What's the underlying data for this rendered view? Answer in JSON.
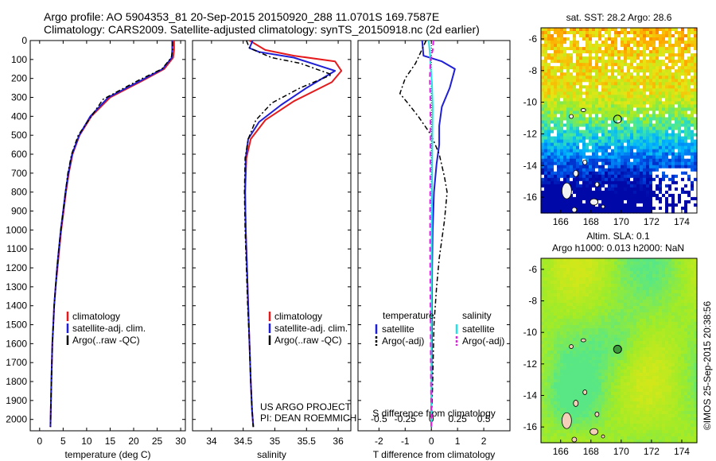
{
  "header": {
    "line1": "Argo profile: AO 5904353_81 20-Sep-2015 20150920_288 11.0701S 169.7587E",
    "line2": "Climatology: CARS2009. Satellite-adjusted climatology: synTS_20150918.nc (2d earlier)"
  },
  "footer_text": {
    "project": "US ARGO PROJECT",
    "pi": "PI: DEAN ROEMMICH",
    "credit": "©IMOS 25-Sep-2015 20:38:56"
  },
  "colors": {
    "climatology": "#e41a1c",
    "satellite": "#1f1fd6",
    "argo": "#000000",
    "salinity_satellite": "#26e0e8",
    "salinity_argo": "#e61ee6"
  },
  "chart_data": [
    {
      "type": "line",
      "xlabel": "temperature (deg C)",
      "xlim": [
        -2,
        31
      ],
      "xticks": [
        0,
        5,
        10,
        15,
        20,
        25,
        30
      ],
      "ylim": [
        0,
        2060
      ],
      "yticks": [
        0,
        100,
        200,
        300,
        400,
        500,
        600,
        700,
        800,
        900,
        1000,
        1100,
        1200,
        1300,
        1400,
        1500,
        1600,
        1700,
        1800,
        1900,
        2000
      ],
      "y_reversed": true,
      "legend": [
        "climatology",
        "satellite-adj. clim.",
        "Argo(..raw -QC)"
      ],
      "series": [
        {
          "name": "climatology",
          "x": [
            28.6,
            28.6,
            28.4,
            26.5,
            22,
            15,
            11,
            8.5,
            7,
            6.2,
            5.6,
            5.1,
            4.6,
            4.2,
            3.8,
            3.4,
            3.1,
            2.9,
            2.7,
            2.5,
            2.3
          ],
          "y": [
            0,
            50,
            90,
            150,
            210,
            300,
            400,
            500,
            600,
            700,
            800,
            900,
            1000,
            1100,
            1200,
            1300,
            1400,
            1500,
            1600,
            1800,
            2040
          ]
        },
        {
          "name": "satellite-adj. clim.",
          "x": [
            28.2,
            28.2,
            28.1,
            26.2,
            21.6,
            14.6,
            10.8,
            8.4,
            6.9,
            6.1,
            5.5,
            5.0,
            4.5,
            4.1,
            3.7,
            3.4,
            3.1,
            2.9,
            2.7,
            2.5,
            2.3
          ],
          "y": [
            0,
            50,
            90,
            150,
            210,
            300,
            400,
            500,
            600,
            700,
            800,
            900,
            1000,
            1100,
            1200,
            1300,
            1400,
            1500,
            1600,
            1800,
            2040
          ]
        },
        {
          "name": "Argo(..raw -QC)",
          "x": [
            28.3,
            28.3,
            28.0,
            26.0,
            21.0,
            13.5,
            11.0,
            8.2,
            6.8,
            6.0,
            5.5,
            5.0,
            4.5,
            4.1,
            3.7,
            3.4,
            3.1,
            2.9,
            2.7,
            2.5,
            2.3
          ],
          "y": [
            5,
            50,
            90,
            150,
            210,
            310,
            400,
            500,
            600,
            700,
            800,
            900,
            1000,
            1100,
            1200,
            1300,
            1400,
            1500,
            1600,
            1800,
            2040
          ]
        }
      ]
    },
    {
      "type": "line",
      "xlabel": "salinity",
      "xlim": [
        33.7,
        36.2
      ],
      "xticks": [
        34,
        34.5,
        35,
        35.5,
        36
      ],
      "ylim": [
        0,
        2060
      ],
      "y_reversed": true,
      "legend": [
        "climatology",
        "satellite-adj. clim.",
        "Argo(..raw -QC)"
      ],
      "series": [
        {
          "name": "climatology",
          "x": [
            34.6,
            34.85,
            35.3,
            35.95,
            36.05,
            35.9,
            35.3,
            34.85,
            34.62,
            34.55,
            34.53,
            34.54,
            34.56,
            34.58,
            34.6,
            34.62,
            34.64,
            34.66
          ],
          "y": [
            0,
            50,
            80,
            110,
            160,
            220,
            320,
            420,
            520,
            620,
            800,
            1000,
            1200,
            1400,
            1600,
            1800,
            1950,
            2040
          ]
        },
        {
          "name": "satellite-adj. clim.",
          "x": [
            34.65,
            34.6,
            34.75,
            35.3,
            35.95,
            35.5,
            35.1,
            34.75,
            34.58,
            34.54,
            34.53,
            34.54,
            34.56,
            34.58,
            34.6,
            34.62,
            34.64,
            34.66
          ],
          "y": [
            0,
            40,
            60,
            90,
            160,
            250,
            340,
            430,
            520,
            620,
            800,
            1000,
            1200,
            1400,
            1600,
            1800,
            1950,
            2040
          ]
        },
        {
          "name": "Argo(..raw -QC)",
          "x": [
            34.55,
            34.6,
            34.95,
            35.4,
            35.9,
            35.4,
            34.95,
            34.7,
            34.58,
            34.53,
            34.52,
            34.53,
            34.55,
            34.57,
            34.6,
            34.62,
            34.64,
            34.66
          ],
          "y": [
            0,
            40,
            90,
            120,
            180,
            250,
            330,
            420,
            520,
            620,
            800,
            1000,
            1200,
            1400,
            1600,
            1800,
            1950,
            2040
          ]
        }
      ]
    },
    {
      "type": "line",
      "title": "",
      "xlabel": "T difference from climatology",
      "xlabel_top": "S difference from climatology",
      "xlim": [
        -2.8,
        3.0
      ],
      "xticks": [
        -2,
        -1,
        0,
        1,
        2
      ],
      "xticks_s": [
        -0.5,
        -0.25,
        0,
        0.25,
        0.5
      ],
      "ylim": [
        0,
        2060
      ],
      "y_reversed": true,
      "legend": {
        "temperature_head": "temperature",
        "salinity_head": "salinity",
        "entries": [
          "satellite",
          "Argo(-adj)",
          "satellite",
          "Argo(-adj)"
        ]
      },
      "series": [
        {
          "name": "temperature satellite",
          "x": [
            -0.35,
            -0.3,
            0.4,
            0.9,
            0.7,
            0.4,
            0.3,
            0.3,
            0.2,
            0.1,
            0.05,
            0.03,
            0.02,
            0.02,
            0.01,
            0.0,
            0.0
          ],
          "y": [
            0,
            80,
            110,
            150,
            250,
            350,
            450,
            550,
            650,
            800,
            1000,
            1200,
            1400,
            1600,
            1800,
            1950,
            2040
          ]
        },
        {
          "name": "temperature Argo(-adj)",
          "x": [
            -0.2,
            -0.6,
            -1.0,
            -1.2,
            -0.9,
            -0.5,
            0.0,
            0.3,
            0.5,
            0.6,
            0.5,
            0.4,
            0.3,
            0.2,
            0.1,
            0.05,
            0.0
          ],
          "y": [
            0,
            120,
            200,
            280,
            330,
            400,
            500,
            600,
            720,
            800,
            950,
            1050,
            1150,
            1300,
            1500,
            1800,
            2040
          ]
        },
        {
          "name": "salinity satellite",
          "x": [
            -0.1,
            -0.05,
            -0.02,
            0.02,
            0.05,
            0.04,
            0.03,
            0.02,
            0.01,
            0.01,
            0.0,
            0.0,
            0.0,
            0.0
          ],
          "y": [
            0,
            80,
            150,
            220,
            350,
            500,
            700,
            900,
            1100,
            1300,
            1500,
            1700,
            1900,
            2040
          ]
        },
        {
          "name": "salinity Argo(-adj)",
          "x": [
            0.08,
            0.05,
            -0.03,
            -0.06,
            -0.04,
            -0.03,
            -0.04,
            -0.05,
            -0.05,
            -0.04,
            -0.03,
            -0.02,
            -0.01,
            0.0
          ],
          "y": [
            0,
            50,
            100,
            200,
            300,
            500,
            700,
            900,
            1100,
            1300,
            1500,
            1700,
            1900,
            2040
          ]
        }
      ]
    },
    {
      "type": "heatmap",
      "title": "sat. SST: 28.2 Argo: 28.6",
      "xlim": [
        164.7,
        175
      ],
      "ylim": [
        -17,
        -5.3
      ],
      "xticks": [
        166,
        168,
        170,
        172,
        174
      ],
      "yticks": [
        -6,
        -8,
        -10,
        -12,
        -14,
        -16
      ],
      "marker": {
        "lon": 169.76,
        "lat": -11.07
      }
    },
    {
      "type": "heatmap",
      "title": "Altim. SLA: 0.1",
      "subtitle": "Argo h1000: 0.013 h2000: NaN",
      "xlim": [
        164.7,
        175
      ],
      "ylim": [
        -17,
        -5.3
      ],
      "xticks": [
        166,
        168,
        170,
        172,
        174
      ],
      "yticks": [
        -6,
        -8,
        -10,
        -12,
        -14,
        -16
      ],
      "marker": {
        "lon": 169.76,
        "lat": -11.07
      }
    }
  ]
}
